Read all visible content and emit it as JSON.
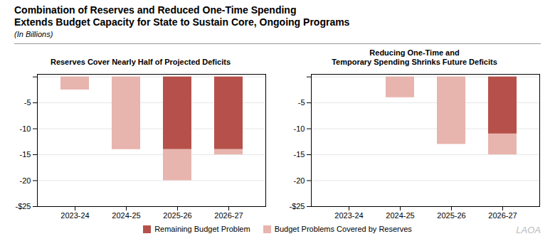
{
  "title": "Combination of Reserves and Reduced One-Time Spending\nExtends Budget Capacity for State to Sustain Core, Ongoing Programs",
  "subtitle": "(In Billions)",
  "legend": "bottom",
  "annotations": [
    "LAOA"
  ],
  "chart_data": [
    {
      "type": "bar",
      "stacked": true,
      "grid": true,
      "title": "Reserves Cover Nearly Half of Projected Deficits",
      "categories": [
        "2023-24",
        "2024-25",
        "2025-26",
        "2026-27"
      ],
      "series": [
        {
          "name": "Remaining Budget Problem",
          "color": "#b5514a",
          "values": [
            0,
            0,
            -14.0,
            -14.0
          ]
        },
        {
          "name": "Budget Problems Covered by Reserves",
          "color": "#e8b4ae",
          "values": [
            -2.5,
            -14.0,
            -6.0,
            -1.0
          ]
        }
      ],
      "ylim": [
        -25,
        0.5
      ],
      "yticks": [
        {
          "value": 0,
          "label": ""
        },
        -5,
        -10,
        -15,
        -20,
        {
          "value": -25,
          "label": "-$25"
        }
      ]
    },
    {
      "type": "bar",
      "stacked": true,
      "grid": true,
      "title": "Reducing One-Time and\nTemporary Spending Shrinks Future Deficits",
      "categories": [
        "2023-24",
        "2024-25",
        "2025-26",
        "2026-27"
      ],
      "series": [
        {
          "name": "Remaining Budget Problem",
          "color": "#b5514a",
          "values": [
            0,
            0,
            0,
            -11.0
          ]
        },
        {
          "name": "Budget Problems Covered by Reserves",
          "color": "#e8b4ae",
          "values": [
            0,
            -4.0,
            -13.0,
            -4.0
          ]
        }
      ],
      "ylim": [
        -25,
        0.5
      ],
      "yticks": [
        {
          "value": 0,
          "label": ""
        },
        -5,
        -10,
        -15,
        -20,
        {
          "value": -25,
          "label": "-$25"
        }
      ]
    }
  ]
}
